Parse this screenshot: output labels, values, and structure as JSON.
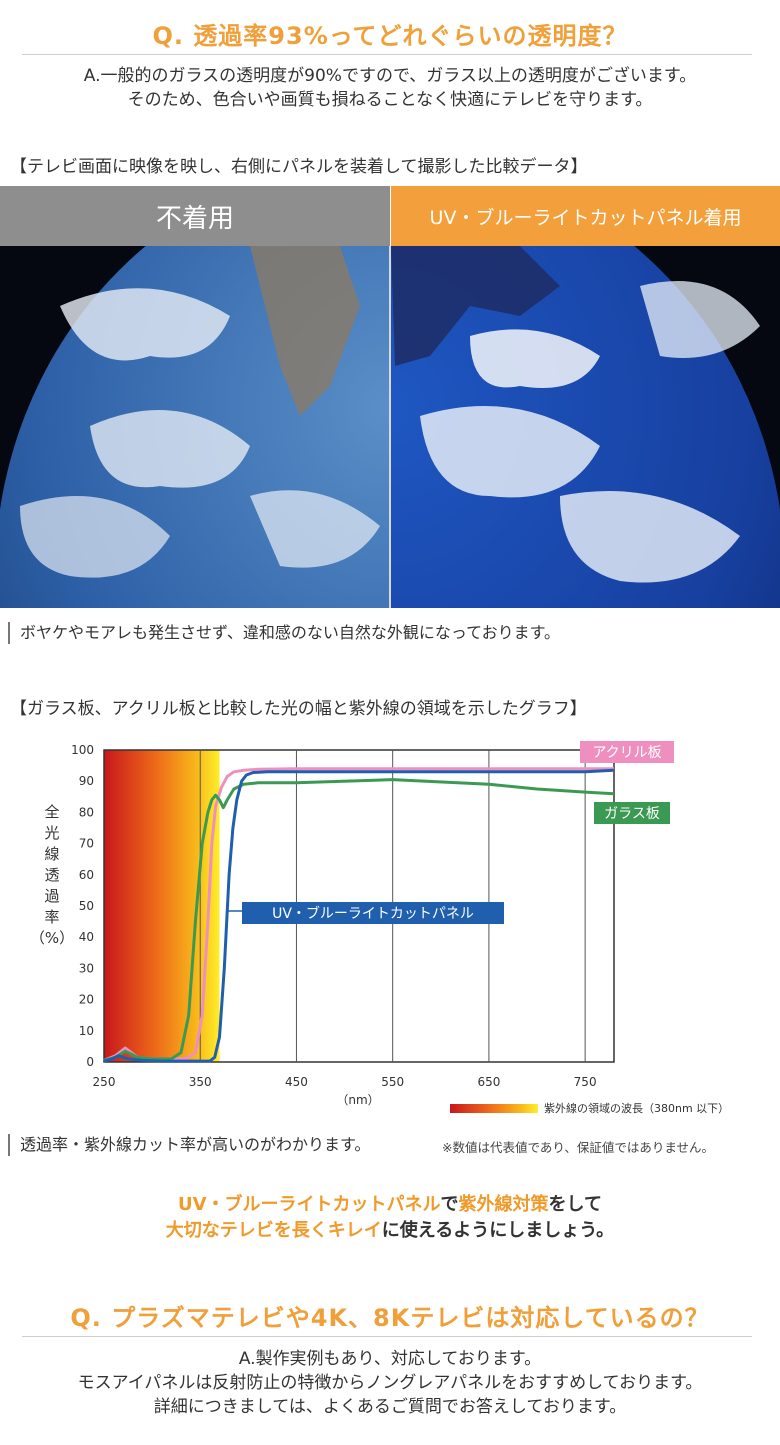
{
  "faq1": {
    "question": "Q. 透過率93%ってどれぐらいの透明度？",
    "answer_line1": "A.一般的のガラスの透明度が90%ですので、ガラス以上の透明度がございます。",
    "answer_line2": "そのため、色合いや画質も損ねることなく快適にテレビを守ります。"
  },
  "comparison": {
    "heading": "【テレビ画面に映像を映し、右側にパネルを装着して撮影した比較データ】",
    "left_label": "不着用",
    "right_label": "UV・ブルーライトカットパネル着用",
    "caption": "ボヤケやモアレも発生させず、違和感のない自然な外観になっております。"
  },
  "graph_section": {
    "heading": "【ガラス板、アクリル板と比較した光の幅と紫外線の領域を示したグラフ】",
    "caption": "透過率・紫外線カット率が高いのがわかります。",
    "disclaimer": "※数値は代表値であり、保証値ではありません。"
  },
  "chart_data": {
    "type": "line",
    "ylabel": "全光線透過率（%）",
    "ylabel_chars": [
      "全",
      "光",
      "線",
      "透",
      "過",
      "率",
      "（%）"
    ],
    "xlabel": "（nm）",
    "xlim": [
      250,
      780
    ],
    "ylim": [
      0,
      100
    ],
    "xticks": [
      "250",
      "350",
      "450",
      "550",
      "650",
      "750"
    ],
    "yticks": [
      "0",
      "10",
      "20",
      "30",
      "40",
      "50",
      "60",
      "70",
      "80",
      "90",
      "100"
    ],
    "grid": true,
    "uv_region_label": "紫外線の領域の波長（380nm 以下）",
    "series": [
      {
        "name": "アクリル板",
        "color": "#ef8fbf",
        "x": [
          250,
          262,
          272,
          285,
          300,
          335,
          345,
          352,
          358,
          362,
          366,
          372,
          378,
          385,
          395,
          410,
          450,
          550,
          650,
          750,
          780
        ],
        "y": [
          0.5,
          2,
          4.5,
          1.5,
          1,
          1,
          3,
          15,
          45,
          70,
          82,
          88,
          91.5,
          93,
          93.5,
          93.8,
          94,
          94,
          94,
          94,
          94
        ]
      },
      {
        "name": "ガラス板",
        "color": "#3a9a52",
        "x": [
          250,
          262,
          272,
          285,
          300,
          320,
          330,
          338,
          345,
          352,
          358,
          362,
          366,
          370,
          374,
          378,
          385,
          395,
          410,
          450,
          550,
          650,
          700,
          750,
          780
        ],
        "y": [
          0.5,
          1.5,
          3.5,
          1.5,
          1,
          1,
          3,
          15,
          45,
          70,
          80,
          84,
          85.5,
          84,
          81.5,
          84,
          87.5,
          89,
          89.5,
          89.5,
          90.5,
          89,
          87.5,
          86.5,
          86
        ]
      },
      {
        "name": "UV・ブルーライトカットパネル",
        "color": "#1f5fae",
        "x": [
          250,
          258,
          265,
          275,
          290,
          310,
          360,
          365,
          370,
          375,
          380,
          384,
          388,
          393,
          398,
          405,
          420,
          450,
          550,
          650,
          750,
          780
        ],
        "y": [
          0.3,
          1,
          2,
          1,
          0.5,
          0.3,
          0.3,
          1.5,
          8,
          30,
          60,
          75,
          84,
          90,
          92,
          92.8,
          93,
          93,
          93,
          93,
          93,
          93.5
        ]
      }
    ]
  },
  "closing": {
    "line1_part1": "UV・ブルーライトカットパネル",
    "line1_part2": "で",
    "line1_part3": "紫外線対策",
    "line1_part4": "をして",
    "line2_part1": "大切なテレビを長くキレイ",
    "line2_part2": "に使えるようにしましょう。"
  },
  "faq2": {
    "question": "Q. プラズマテレビや4K、8Kテレビは対応しているの？",
    "answer_line1": "A.製作実例もあり、対応しております。",
    "answer_line2": "モスアイパネルは反射防止の特徴からノングレアパネルをおすすめしております。",
    "answer_line3": "詳細につきましては、よくあるご質問でお答えしております。"
  },
  "colors": {
    "accent_orange": "#f3a03c",
    "banner_gray": "#8e8e8e",
    "acrylic_pink": "#ef8fbf",
    "glass_green": "#3a9a52",
    "panel_blue": "#1f5fae"
  }
}
